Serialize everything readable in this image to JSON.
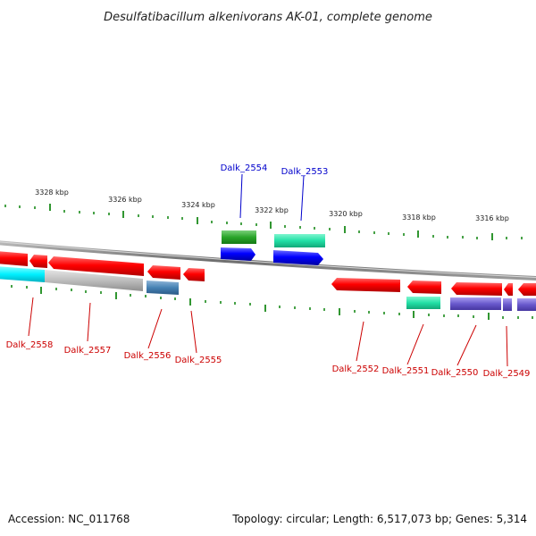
{
  "title": "Desulfatibacillum alkenivorans AK-01, complete genome",
  "footer": {
    "accession": "Accession: NC_011768",
    "topology": "Topology: circular; Length: 6,517,073 bp; Genes: 5,314"
  },
  "ruler_labels": [
    "3328 kbp",
    "3326 kbp",
    "3324 kbp",
    "3322 kbp",
    "3320 kbp",
    "3318 kbp",
    "3316 kbp"
  ],
  "genes": [
    {
      "id": "Dalk_2554",
      "strand": "forward",
      "color": "#0000cc"
    },
    {
      "id": "Dalk_2553",
      "strand": "forward",
      "color": "#0000cc"
    },
    {
      "id": "Dalk_2558",
      "strand": "reverse",
      "color": "#cc0000"
    },
    {
      "id": "Dalk_2557",
      "strand": "reverse",
      "color": "#cc0000"
    },
    {
      "id": "Dalk_2556",
      "strand": "reverse",
      "color": "#cc0000"
    },
    {
      "id": "Dalk_2555",
      "strand": "reverse",
      "color": "#cc0000"
    },
    {
      "id": "Dalk_2552",
      "strand": "reverse",
      "color": "#cc0000"
    },
    {
      "id": "Dalk_2551",
      "strand": "reverse",
      "color": "#cc0000"
    },
    {
      "id": "Dalk_2550",
      "strand": "reverse",
      "color": "#cc0000"
    },
    {
      "id": "Dalk_2549",
      "strand": "reverse",
      "color": "#cc0000"
    }
  ]
}
